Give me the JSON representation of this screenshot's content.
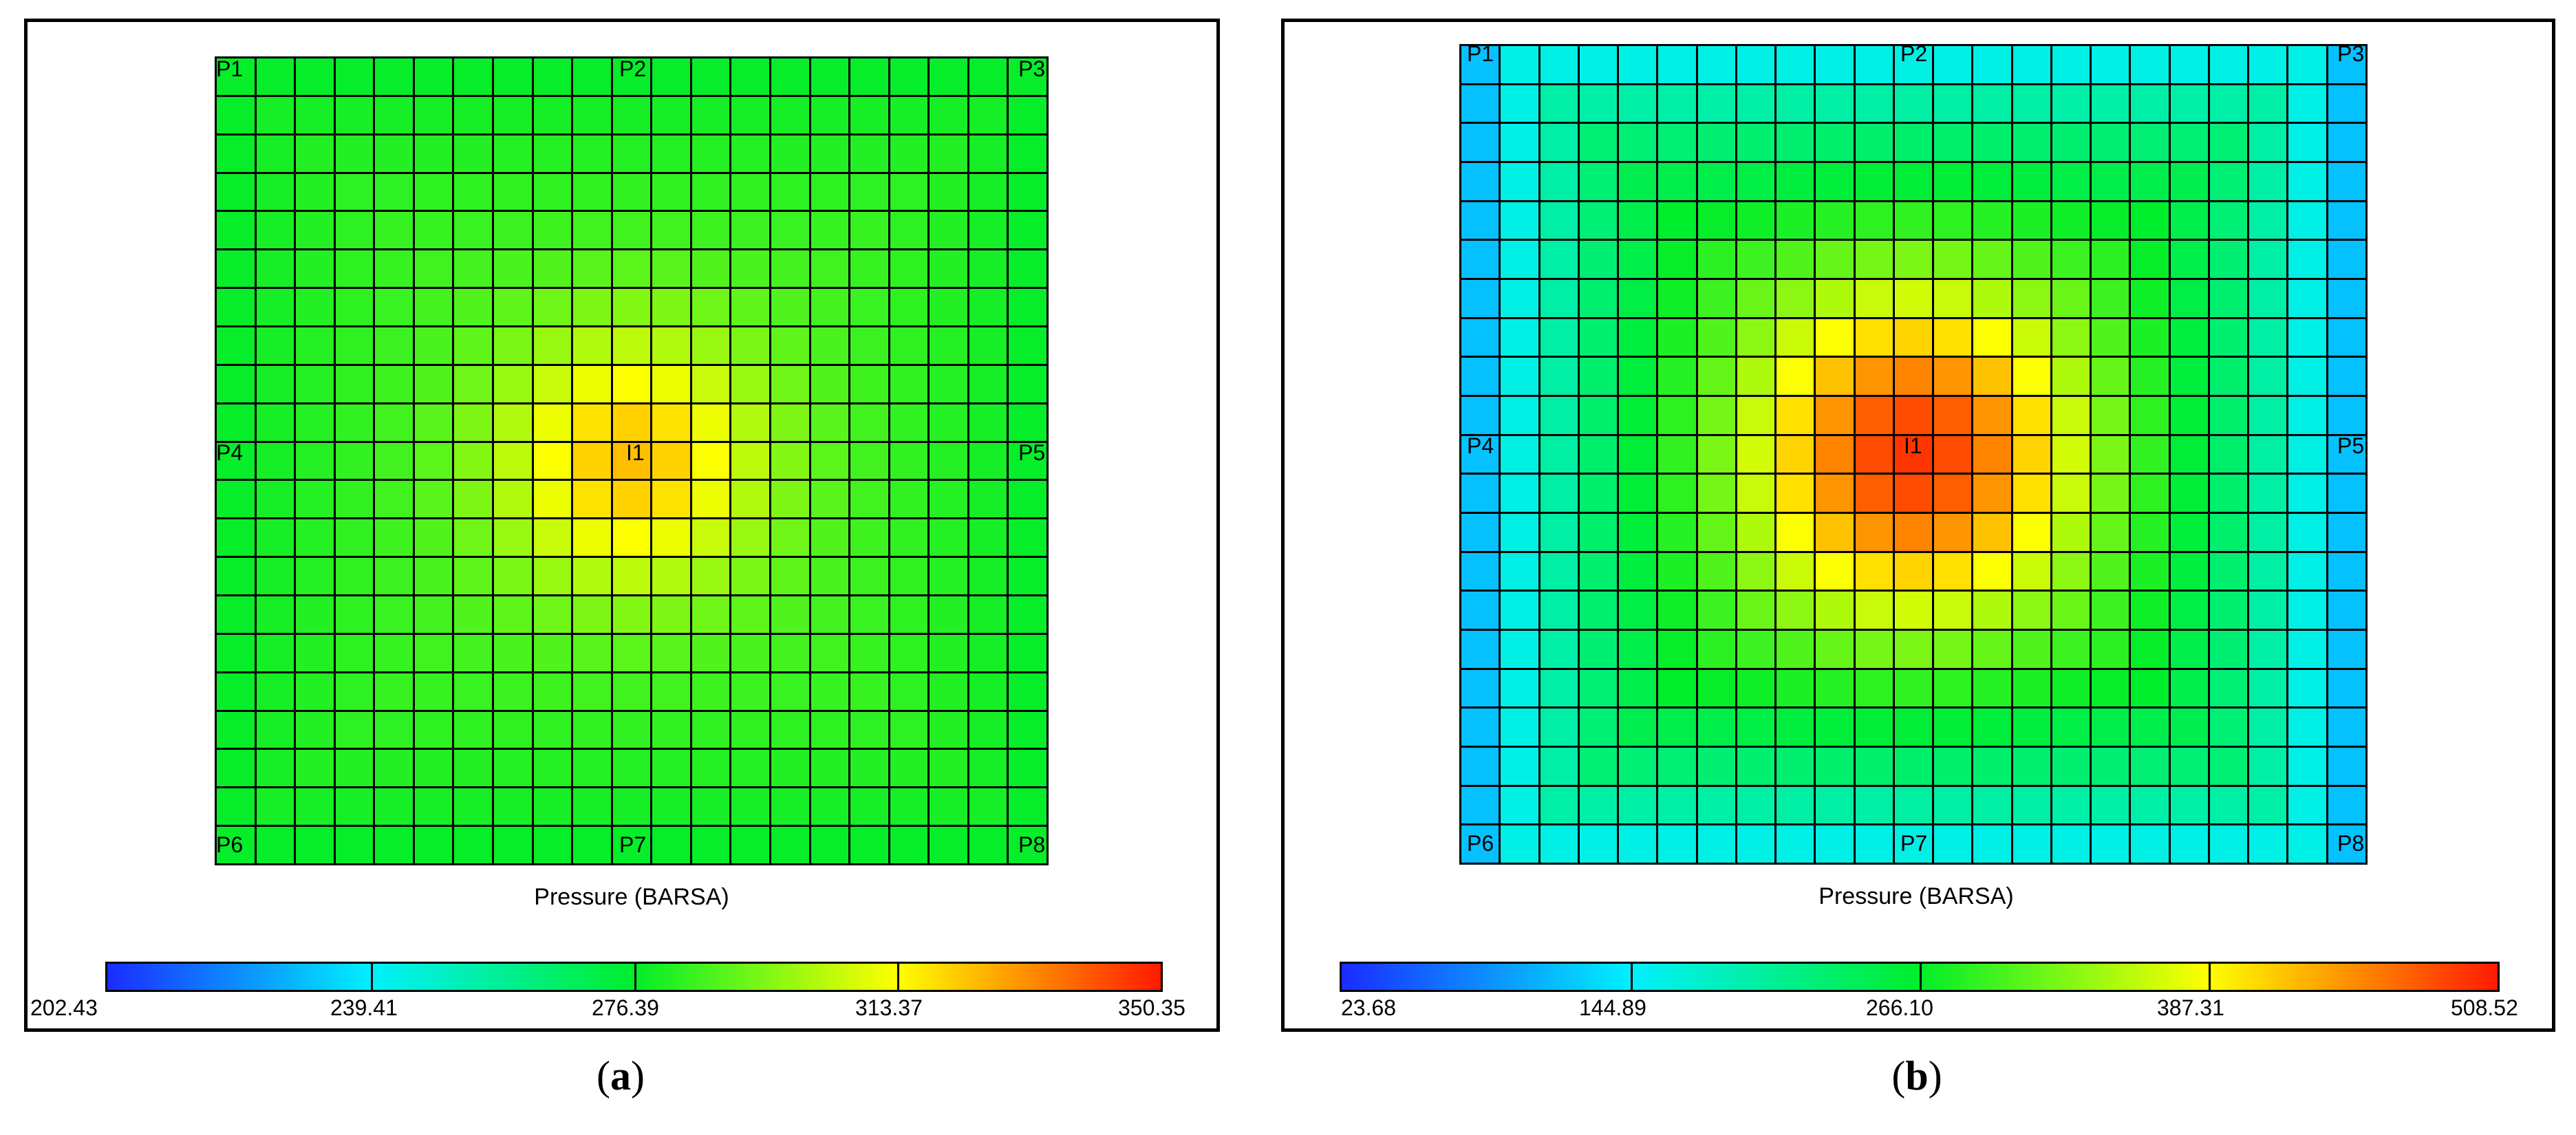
{
  "panels": [
    {
      "id": "a",
      "caption_open": "(",
      "caption_letter": "a",
      "caption_close": ")",
      "axis_label": "Pressure (BARSA)",
      "colorbar_ticks": [
        "202.43",
        "239.41",
        "276.39",
        "313.37",
        "350.35"
      ],
      "wells": {
        "P1": "P1",
        "P2": "P2",
        "P3": "P3",
        "P4": "P4",
        "I1": "I1",
        "P5": "P5",
        "P6": "P6",
        "P7": "P7",
        "P8": "P8"
      }
    },
    {
      "id": "b",
      "caption_open": "(",
      "caption_letter": "b",
      "caption_close": ")",
      "axis_label": "Pressure (BARSA)",
      "colorbar_ticks": [
        "23.68",
        "144.89",
        "266.10",
        "387.31",
        "508.52"
      ],
      "wells": {
        "P1": "P1",
        "P2": "P2",
        "P3": "P3",
        "P4": "P4",
        "I1": "I1",
        "P5": "P5",
        "P6": "P6",
        "P7": "P7",
        "P8": "P8"
      }
    }
  ],
  "colors": {
    "colormap": [
      "#1a2cff",
      "#00f0ff",
      "#00ee2a",
      "#ffff00",
      "#ff1a00"
    ]
  }
}
